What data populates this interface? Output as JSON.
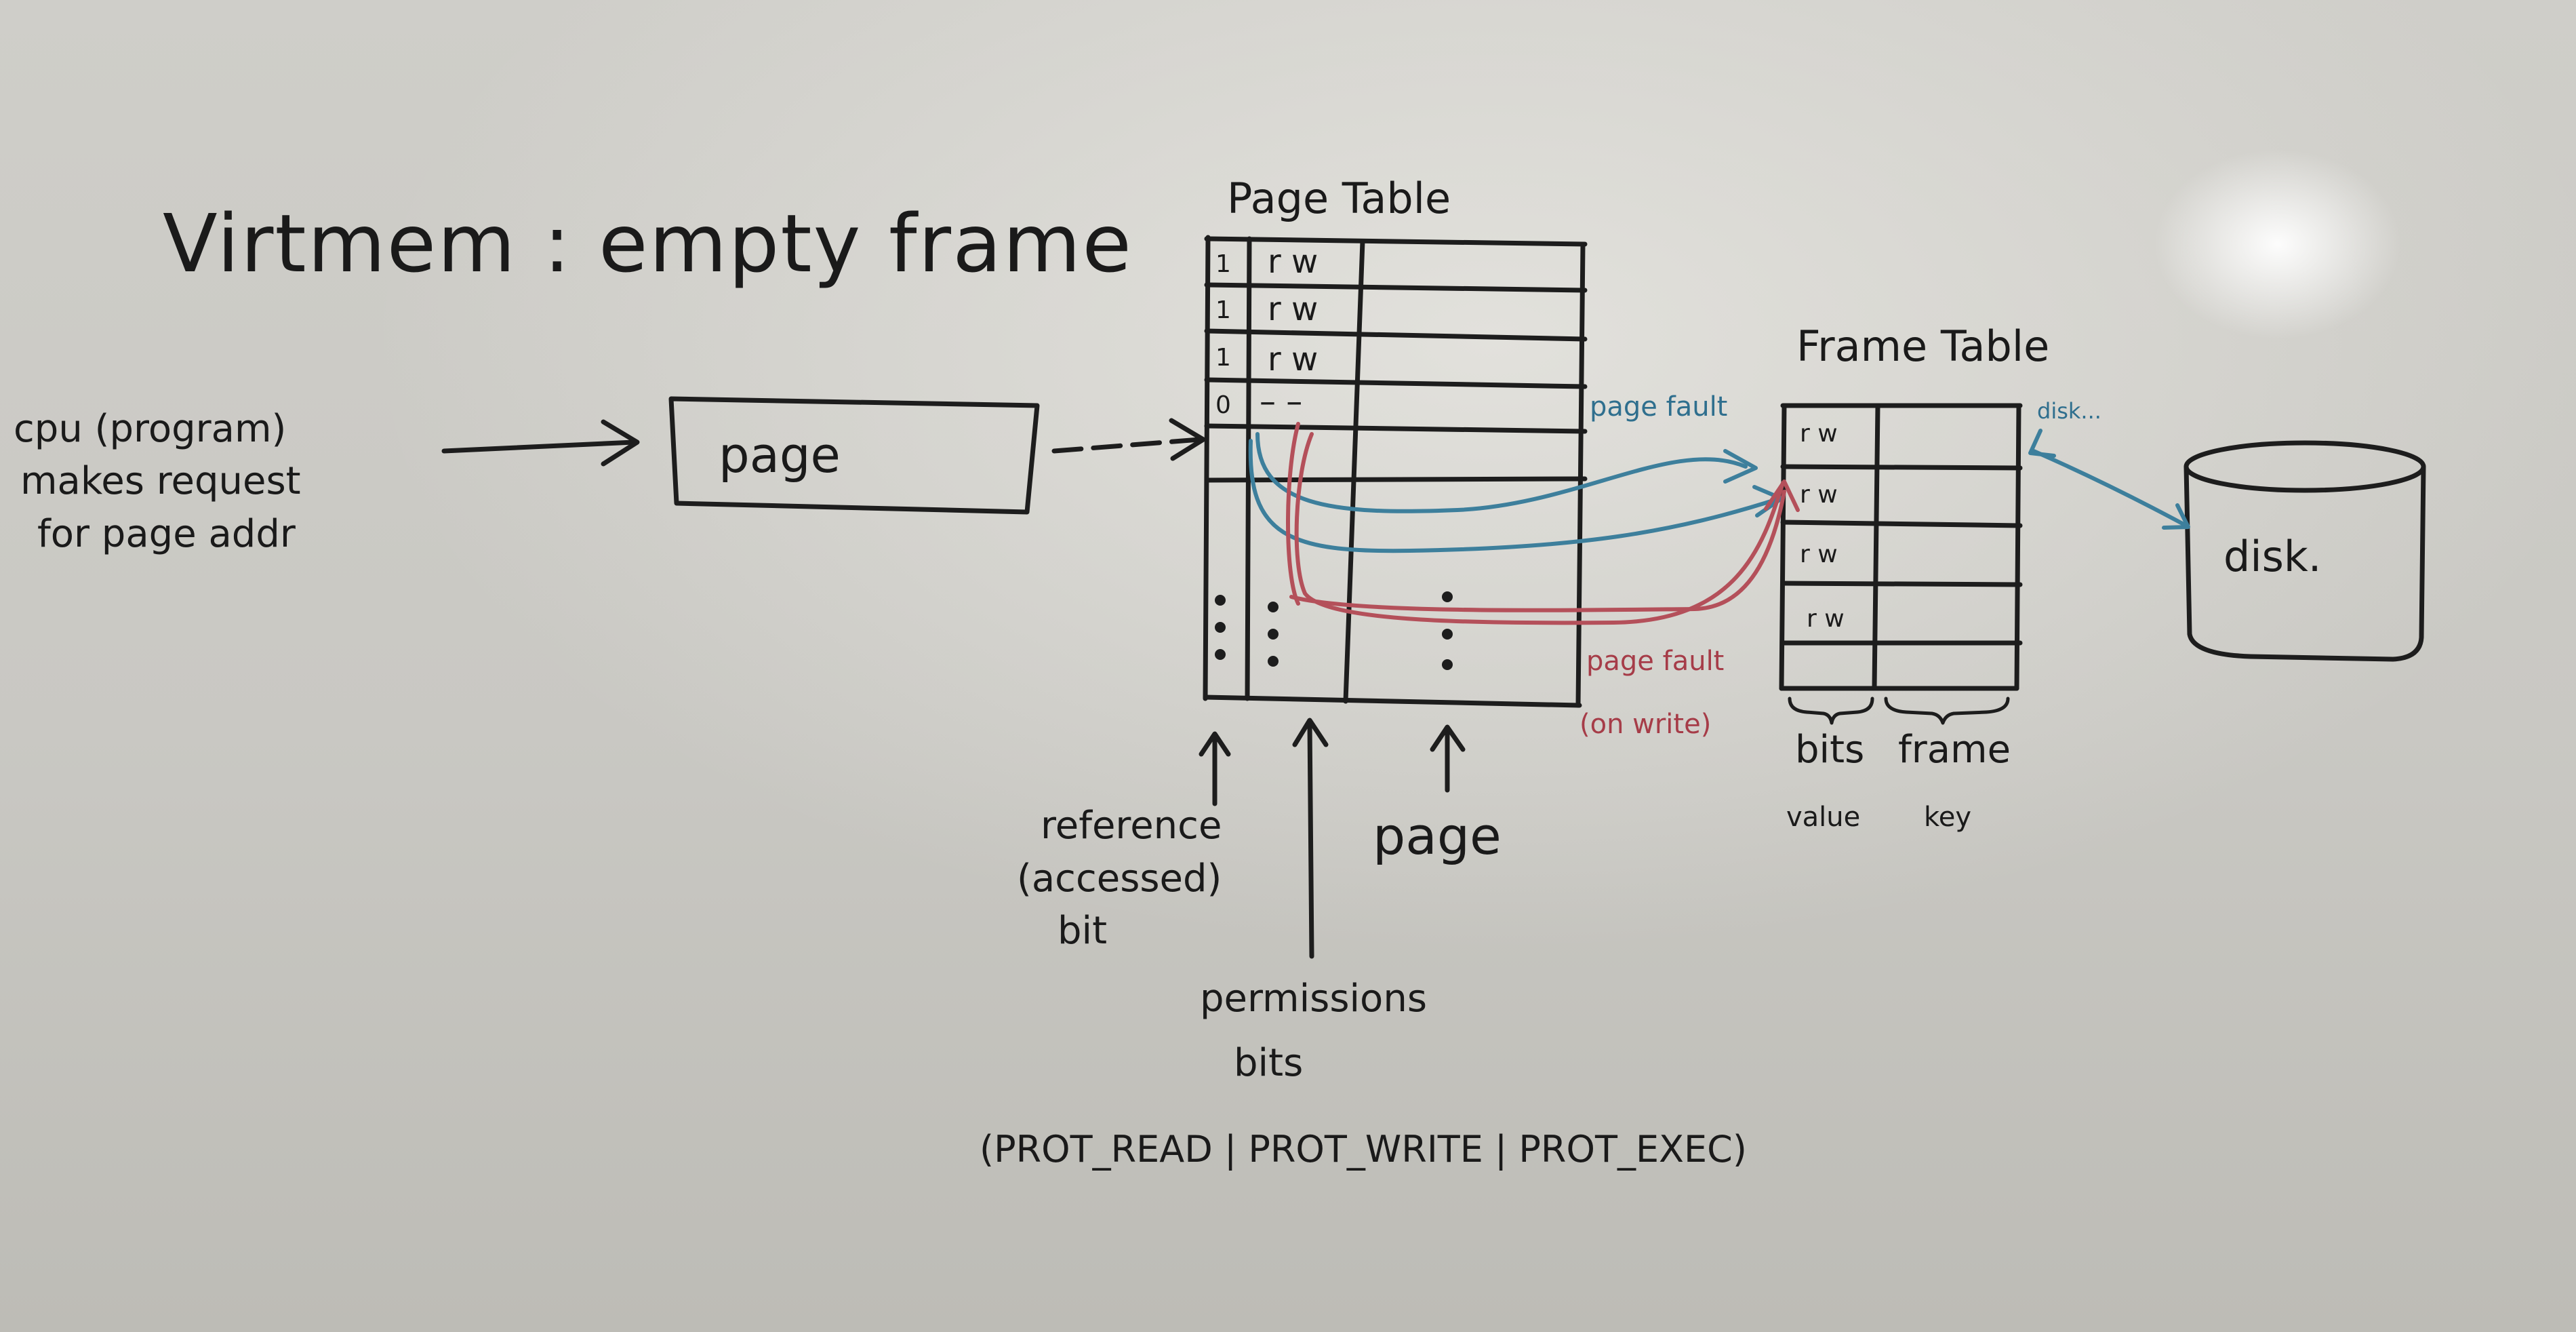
{
  "title": "Virtmem : empty frame",
  "cpu_label": {
    "line1": "cpu (program)",
    "line2": "makes request",
    "line3": "for page addr"
  },
  "page_box_label": "page",
  "page_table": {
    "heading": "Page Table",
    "rows": [
      {
        "ref": "1",
        "perm": "r w"
      },
      {
        "ref": "1",
        "perm": "r w"
      },
      {
        "ref": "1",
        "perm": "r w"
      },
      {
        "ref": "0",
        "perm": "– –"
      }
    ]
  },
  "frame_table": {
    "heading": "Frame Table",
    "rows": [
      "r w",
      "r w",
      "r w",
      "r w"
    ],
    "col_bits": "bits",
    "col_frame": "frame",
    "col_value": "value",
    "col_key": "key"
  },
  "arrows": {
    "blue_label": "page fault",
    "red_label1": "page fault",
    "red_label2": "(on write)",
    "disk_link_label": "disk..."
  },
  "disk_label": "disk.",
  "annotations": {
    "reference_line1": "reference",
    "reference_line2": "(accessed)",
    "reference_line3": "bit",
    "page": "page",
    "permissions_line1": "permissions",
    "permissions_line2": "bits",
    "prot_flags": "(PROT_READ | PROT_WRITE | PROT_EXEC)"
  }
}
